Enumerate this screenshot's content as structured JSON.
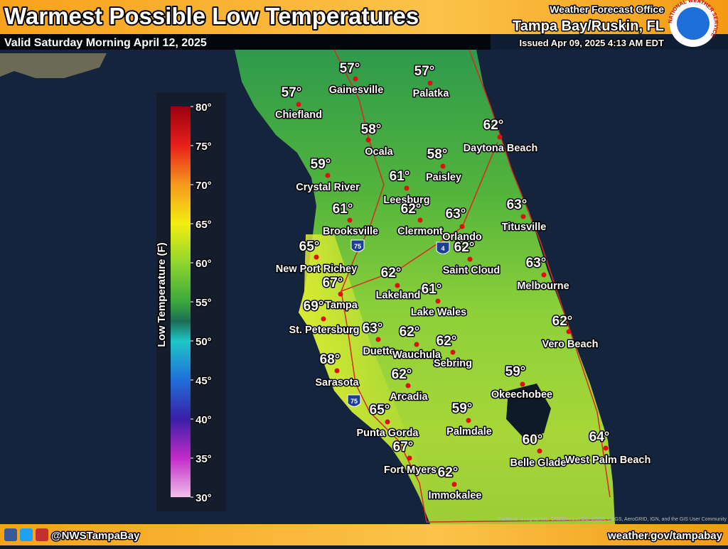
{
  "header": {
    "title": "Warmest Possible Low Temperatures",
    "valid": "Valid Saturday Morning April 12, 2025",
    "office_label": "Weather Forecast Office",
    "office": "Tampa Bay/Ruskin, FL",
    "issued": "Issued Apr 09, 2025 4:13 AM EDT",
    "logo_text": "NATIONAL WEATHER SERVICE"
  },
  "legend": {
    "title": "Low Temperature (F)",
    "ticks": [
      "80°",
      "75°",
      "70°",
      "65°",
      "60°",
      "55°",
      "50°",
      "45°",
      "40°",
      "35°",
      "30°"
    ]
  },
  "cities": [
    {
      "name": "Gainesville",
      "temp": "57°"
    },
    {
      "name": "Palatka",
      "temp": "57°"
    },
    {
      "name": "Chiefland",
      "temp": "57°"
    },
    {
      "name": "Ocala",
      "temp": "58°"
    },
    {
      "name": "Daytona Beach",
      "temp": "62°"
    },
    {
      "name": "Crystal River",
      "temp": "59°"
    },
    {
      "name": "Paisley",
      "temp": "58°"
    },
    {
      "name": "Leesburg",
      "temp": "61°"
    },
    {
      "name": "Titusville",
      "temp": "63°"
    },
    {
      "name": "Brooksville",
      "temp": "61°"
    },
    {
      "name": "Clermont",
      "temp": "62°"
    },
    {
      "name": "Orlando",
      "temp": "63°"
    },
    {
      "name": "New Port Richey",
      "temp": "65°"
    },
    {
      "name": "Saint Cloud",
      "temp": "62°"
    },
    {
      "name": "Melbourne",
      "temp": "63°"
    },
    {
      "name": "Lakeland",
      "temp": "62°"
    },
    {
      "name": "Tampa",
      "temp": "67°"
    },
    {
      "name": "Lake Wales",
      "temp": "61°"
    },
    {
      "name": "St. Petersburg",
      "temp": "69°"
    },
    {
      "name": "Vero Beach",
      "temp": "62°"
    },
    {
      "name": "Duette",
      "temp": "63°"
    },
    {
      "name": "Wauchula",
      "temp": "62°"
    },
    {
      "name": "Sebring",
      "temp": "62°"
    },
    {
      "name": "Sarasota",
      "temp": "68°"
    },
    {
      "name": "Okeechobee",
      "temp": "59°"
    },
    {
      "name": "Arcadia",
      "temp": "62°"
    },
    {
      "name": "Punta Gorda",
      "temp": "65°"
    },
    {
      "name": "Palmdale",
      "temp": "59°"
    },
    {
      "name": "Belle Glade",
      "temp": "60°"
    },
    {
      "name": "West Palm Beach",
      "temp": "64°"
    },
    {
      "name": "Fort Myers",
      "temp": "67°"
    },
    {
      "name": "Immokalee",
      "temp": "62°"
    }
  ],
  "shields": [
    "75",
    "4",
    "75"
  ],
  "attribution": "Earthstar Geographics, CNES/Airbus DS, USDA, USGS, AeroGRID, IGN, and the GIS User Community",
  "footer": {
    "handle": "@NWSTampaBay",
    "url": "weather.gov/tampabay"
  }
}
